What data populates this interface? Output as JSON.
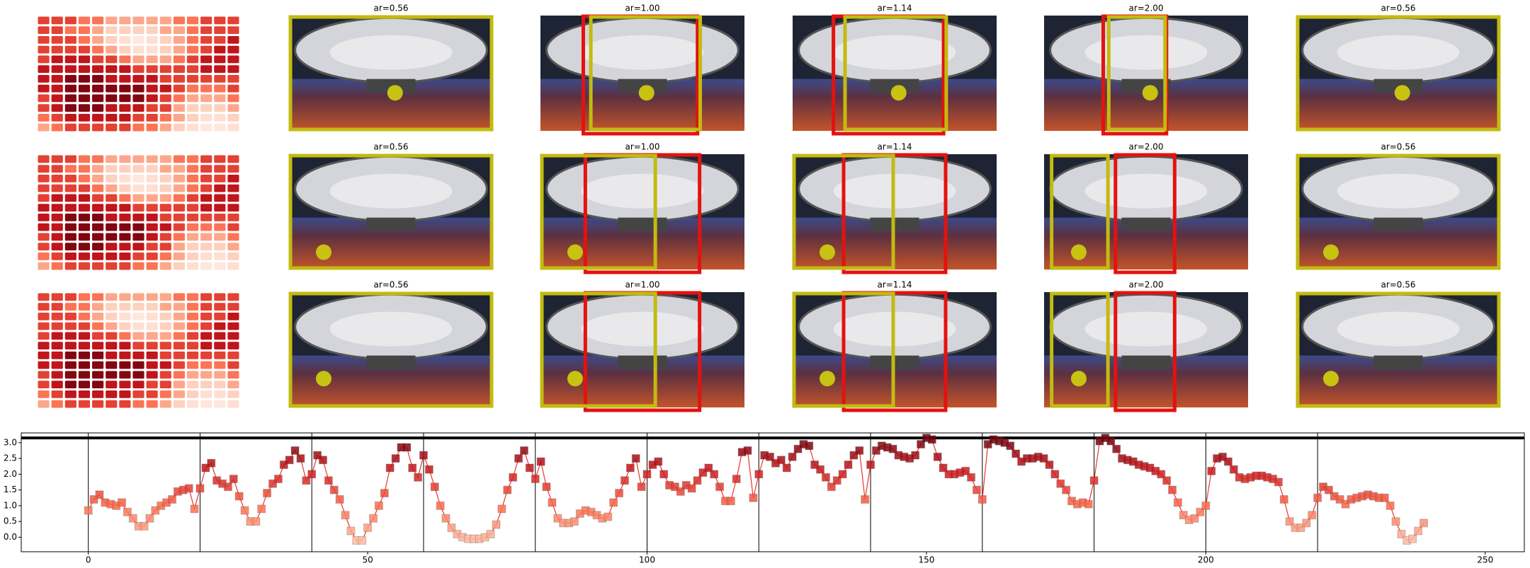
{
  "panels": {
    "rows": [
      {
        "titles": [
          "ar=0.56",
          "ar=1.00",
          "ar=1.14",
          "ar=2.00",
          "ar=0.56"
        ]
      },
      {
        "titles": [
          "ar=0.56",
          "ar=1.00",
          "ar=1.14",
          "ar=2.00",
          "ar=0.56"
        ]
      },
      {
        "titles": [
          "ar=0.56",
          "ar=1.00",
          "ar=1.14",
          "ar=2.00",
          "ar=0.56"
        ]
      }
    ]
  },
  "heatmap": {
    "colormap": [
      "#fff5f0",
      "#fcbba1",
      "#fb6a4a",
      "#cb181d",
      "#67000d"
    ],
    "range": [
      0,
      3.2
    ],
    "values": [
      [
        2,
        2,
        2,
        1.5,
        1.5,
        1,
        1,
        1,
        1,
        1,
        1.5,
        1.5,
        2,
        2,
        2
      ],
      [
        2,
        2,
        1.5,
        1.5,
        1,
        0.5,
        0.5,
        0.5,
        0.5,
        1,
        1,
        1.5,
        2,
        2,
        2
      ],
      [
        2,
        2,
        2,
        1.5,
        1,
        0.5,
        0.3,
        0.2,
        0.3,
        0.5,
        1,
        1.5,
        2,
        2,
        2.5
      ],
      [
        2,
        2,
        2,
        2,
        1.5,
        1,
        0.5,
        0.3,
        0.3,
        0.5,
        1,
        1.5,
        2,
        2.5,
        2.5
      ],
      [
        2,
        2.5,
        2.5,
        2.5,
        2,
        2,
        1.5,
        1,
        1,
        1,
        1.5,
        2,
        2.5,
        2.5,
        2.5
      ],
      [
        2.5,
        2.5,
        2.5,
        2.5,
        2.5,
        2.5,
        2.5,
        2,
        2,
        2,
        2,
        2,
        2.5,
        2.5,
        2.5
      ],
      [
        2.5,
        2.5,
        3,
        3,
        3,
        2.5,
        2.5,
        2.5,
        2.5,
        2,
        2,
        2,
        2,
        2,
        2
      ],
      [
        2.5,
        2.5,
        3,
        3,
        3,
        3,
        3,
        3,
        2.5,
        2.5,
        2,
        1.5,
        1.5,
        1.5,
        2
      ],
      [
        2,
        2.5,
        3,
        3,
        3,
        3,
        3,
        3,
        2.5,
        2,
        1.5,
        1,
        1,
        1,
        1.5
      ],
      [
        2,
        2.5,
        3,
        3,
        3,
        2.5,
        2.5,
        2.5,
        2,
        2,
        1,
        0.5,
        0.5,
        0.5,
        1
      ],
      [
        1.5,
        2,
        2.5,
        2.5,
        2.5,
        2.5,
        2.5,
        2,
        2,
        1.5,
        1,
        0.5,
        0.3,
        0.3,
        0.5
      ],
      [
        1,
        1.5,
        2,
        2,
        2,
        2,
        2,
        1.5,
        1.5,
        1,
        0.5,
        0.3,
        0.2,
        0.2,
        0.3
      ]
    ]
  },
  "chart_data": {
    "type": "line",
    "x": [
      0,
      1,
      2,
      3,
      4,
      5,
      6,
      7,
      8,
      9,
      10,
      11,
      12,
      13,
      14,
      15,
      16,
      17,
      18,
      19,
      20,
      21,
      22,
      23,
      24,
      25,
      26,
      27,
      28,
      29,
      30,
      31,
      32,
      33,
      34,
      35,
      36,
      37,
      38,
      39,
      40,
      41,
      42,
      43,
      44,
      45,
      46,
      47,
      48,
      49,
      50,
      51,
      52,
      53,
      54,
      55,
      56,
      57,
      58,
      59,
      60,
      61,
      62,
      63,
      64,
      65,
      66,
      67,
      68,
      69,
      70,
      71,
      72,
      73,
      74,
      75,
      76,
      77,
      78,
      79,
      80,
      81,
      82,
      83,
      84,
      85,
      86,
      87,
      88,
      89,
      90,
      91,
      92,
      93,
      94,
      95,
      96,
      97,
      98,
      99,
      100,
      101,
      102,
      103,
      104,
      105,
      106,
      107,
      108,
      109,
      110,
      111,
      112,
      113,
      114,
      115,
      116,
      117,
      118,
      119,
      120,
      121,
      122,
      123,
      124,
      125,
      126,
      127,
      128,
      129,
      130,
      131,
      132,
      133,
      134,
      135,
      136,
      137,
      138,
      139,
      140,
      141,
      142,
      143,
      144,
      145,
      146,
      147,
      148,
      149,
      150,
      151,
      152,
      153,
      154,
      155,
      156,
      157,
      158,
      159,
      160,
      161,
      162,
      163,
      164,
      165,
      166,
      167,
      168,
      169,
      170,
      171,
      172,
      173,
      174,
      175,
      176,
      177,
      178,
      179,
      180,
      181,
      182,
      183,
      184,
      185,
      186,
      187,
      188,
      189,
      190,
      191,
      192,
      193,
      194,
      195,
      196,
      197,
      198,
      199,
      200,
      201,
      202,
      203,
      204,
      205,
      206,
      207,
      208,
      209,
      210,
      211,
      212,
      213,
      214,
      215,
      216,
      217,
      218,
      219,
      220,
      221,
      222,
      223,
      224,
      225,
      226,
      227,
      228,
      229,
      230,
      231,
      232,
      233,
      234,
      235,
      236,
      237,
      238,
      239
    ],
    "series": [
      {
        "color": "#e8352a",
        "values": [
          0.85,
          1.2,
          1.35,
          1.1,
          1.05,
          1.0,
          1.1,
          0.8,
          0.6,
          0.35,
          0.35,
          0.6,
          0.85,
          1.0,
          1.1,
          1.2,
          1.45,
          1.5,
          1.55,
          0.9,
          1.55,
          2.2,
          2.35,
          1.8,
          1.7,
          1.6,
          1.85,
          1.3,
          0.85,
          0.5,
          0.5,
          0.9,
          1.4,
          1.7,
          1.85,
          2.3,
          2.45,
          2.75,
          2.5,
          1.8,
          2.0,
          2.6,
          2.45,
          1.8,
          1.5,
          1.2,
          0.7,
          0.2,
          -0.1,
          -0.1,
          0.3,
          0.6,
          1.0,
          1.4,
          2.2,
          2.5,
          2.85,
          2.85,
          2.2,
          1.9,
          2.6,
          2.15,
          1.6,
          1.0,
          0.6,
          0.3,
          0.1,
          0.0,
          -0.05,
          -0.05,
          -0.05,
          0.0,
          0.1,
          0.4,
          0.9,
          1.5,
          1.9,
          2.5,
          2.75,
          2.2,
          1.85,
          2.4,
          1.6,
          1.1,
          0.6,
          0.45,
          0.45,
          0.5,
          0.75,
          0.85,
          0.8,
          0.7,
          0.6,
          0.65,
          1.1,
          1.4,
          1.8,
          2.2,
          2.5,
          1.6,
          2.0,
          2.3,
          2.4,
          2.0,
          1.65,
          1.6,
          1.45,
          1.65,
          1.55,
          1.8,
          2.05,
          2.2,
          2.0,
          1.6,
          1.15,
          1.15,
          1.85,
          2.7,
          2.75,
          1.25,
          2.0,
          2.6,
          2.55,
          2.35,
          2.45,
          2.2,
          2.55,
          2.8,
          2.95,
          2.9,
          2.3,
          2.15,
          1.9,
          1.6,
          1.8,
          2.0,
          2.3,
          2.6,
          2.75,
          1.2,
          2.3,
          2.75,
          2.9,
          2.85,
          2.8,
          2.6,
          2.55,
          2.5,
          2.6,
          2.95,
          3.15,
          3.1,
          2.55,
          2.2,
          2.0,
          2.0,
          2.05,
          2.1,
          1.9,
          1.5,
          1.2,
          2.95,
          3.1,
          3.05,
          3.0,
          2.9,
          2.65,
          2.4,
          2.5,
          2.5,
          2.55,
          2.5,
          2.3,
          2.0,
          1.7,
          1.5,
          1.15,
          1.05,
          1.1,
          1.05,
          1.8,
          3.05,
          3.15,
          3.05,
          2.8,
          2.5,
          2.45,
          2.4,
          2.3,
          2.25,
          2.2,
          2.1,
          2.0,
          1.8,
          1.5,
          1.1,
          0.7,
          0.55,
          0.6,
          0.8,
          1.0,
          2.1,
          2.5,
          2.55,
          2.4,
          2.15,
          1.9,
          1.85,
          1.9,
          1.95,
          1.95,
          1.9,
          1.85,
          1.75,
          1.2,
          0.5,
          0.3,
          0.3,
          0.45,
          0.7,
          1.25,
          1.6,
          1.5,
          1.3,
          1.2,
          1.05,
          1.2,
          1.25,
          1.3,
          1.35,
          1.3,
          1.25,
          1.25,
          1.0,
          0.5,
          0.1,
          -0.1,
          -0.05,
          0.2,
          0.45
        ]
      }
    ],
    "marker_colormap": [
      "#fcbba1",
      "#fb6a4a",
      "#cb181d",
      "#67000d"
    ],
    "marker_color_range": [
      -0.1,
      3.2
    ],
    "xlim": [
      -12,
      257
    ],
    "ylim": [
      -0.46,
      3.31
    ],
    "xticks": [
      0,
      50,
      100,
      150,
      200,
      250
    ],
    "yticks": [
      {
        "value": 0,
        "label": "0.0"
      },
      0.5,
      {
        "value": 1,
        "label": "1.0"
      },
      1.5,
      {
        "value": 2,
        "label": "2.0"
      },
      2.5,
      {
        "value": 3,
        "label": "3.0"
      }
    ],
    "vlines": [
      0,
      20,
      40,
      60,
      80,
      100,
      120,
      140,
      160,
      180,
      200,
      220
    ],
    "hline": 3.15
  }
}
